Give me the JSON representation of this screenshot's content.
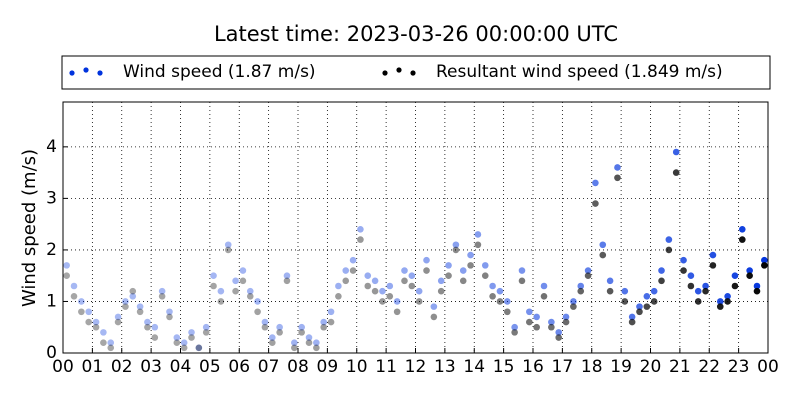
{
  "chart_data": {
    "type": "scatter",
    "title": "Latest time: 2023-03-26 00:00:00 UTC",
    "y_label": "Wind speed (m/s)",
    "x": [
      0.125,
      0.375,
      0.625,
      0.875,
      1.125,
      1.375,
      1.625,
      1.875,
      2.125,
      2.375,
      2.625,
      2.875,
      3.125,
      3.375,
      3.625,
      3.875,
      4.125,
      4.375,
      4.625,
      4.875,
      5.125,
      5.375,
      5.625,
      5.875,
      6.125,
      6.375,
      6.625,
      6.875,
      7.125,
      7.375,
      7.625,
      7.875,
      8.125,
      8.375,
      8.625,
      8.875,
      9.125,
      9.375,
      9.625,
      9.875,
      10.125,
      10.375,
      10.625,
      10.875,
      11.125,
      11.375,
      11.625,
      11.875,
      12.125,
      12.375,
      12.625,
      12.875,
      13.125,
      13.375,
      13.625,
      13.875,
      14.125,
      14.375,
      14.625,
      14.875,
      15.125,
      15.375,
      15.625,
      15.875,
      16.125,
      16.375,
      16.625,
      16.875,
      17.125,
      17.375,
      17.625,
      17.875,
      18.125,
      18.375,
      18.625,
      18.875,
      19.125,
      19.375,
      19.625,
      19.875,
      20.125,
      20.375,
      20.625,
      20.875,
      21.125,
      21.375,
      21.625,
      21.875,
      22.125,
      22.375,
      22.625,
      22.875,
      23.125,
      23.375,
      23.625,
      23.875
    ],
    "series": [
      {
        "name": "Wind speed (1.87 m/s)",
        "color": "#0033dd",
        "values": [
          1.7,
          1.3,
          1.0,
          0.8,
          0.6,
          0.4,
          0.2,
          0.7,
          1.0,
          1.1,
          0.9,
          0.6,
          0.5,
          1.2,
          0.8,
          0.3,
          0.2,
          0.4,
          0.1,
          0.5,
          1.5,
          1.2,
          2.1,
          1.4,
          1.6,
          1.2,
          1.0,
          0.6,
          0.3,
          0.5,
          1.5,
          0.2,
          0.5,
          0.3,
          0.2,
          0.6,
          0.8,
          1.3,
          1.6,
          1.8,
          2.4,
          1.5,
          1.4,
          1.2,
          1.3,
          1.0,
          1.6,
          1.5,
          1.2,
          1.8,
          0.9,
          1.4,
          1.7,
          2.1,
          1.6,
          1.9,
          2.3,
          1.7,
          1.3,
          1.2,
          1.0,
          0.5,
          1.6,
          0.8,
          0.7,
          1.3,
          0.6,
          0.4,
          0.7,
          1.0,
          1.3,
          1.6,
          3.3,
          2.1,
          1.4,
          3.6,
          1.2,
          0.7,
          0.9,
          1.1,
          1.2,
          1.6,
          2.2,
          3.9,
          1.8,
          1.5,
          1.2,
          1.3,
          1.9,
          1.0,
          1.1,
          1.5,
          2.4,
          1.6,
          1.3,
          1.8
        ]
      },
      {
        "name": "Resultant wind speed (1.849 m/s)",
        "color": "#000000",
        "values": [
          1.5,
          1.1,
          0.8,
          0.6,
          0.5,
          0.2,
          0.1,
          0.6,
          0.9,
          1.2,
          0.8,
          0.5,
          0.3,
          1.1,
          0.7,
          0.2,
          0.1,
          0.3,
          0.1,
          0.4,
          1.3,
          1.0,
          2.0,
          1.2,
          1.4,
          1.1,
          0.8,
          0.5,
          0.2,
          0.4,
          1.4,
          0.1,
          0.4,
          0.2,
          0.1,
          0.5,
          0.6,
          1.1,
          1.4,
          1.6,
          2.2,
          1.3,
          1.2,
          1.0,
          1.1,
          0.8,
          1.4,
          1.3,
          1.0,
          1.6,
          0.7,
          1.2,
          1.5,
          2.0,
          1.4,
          1.7,
          2.1,
          1.5,
          1.1,
          1.0,
          0.8,
          0.4,
          1.4,
          0.6,
          0.5,
          1.1,
          0.5,
          0.3,
          0.6,
          0.9,
          1.2,
          1.5,
          2.9,
          1.9,
          1.2,
          3.4,
          1.0,
          0.6,
          0.8,
          0.9,
          1.0,
          1.4,
          2.0,
          3.5,
          1.6,
          1.3,
          1.0,
          1.2,
          1.7,
          0.9,
          1.0,
          1.3,
          2.2,
          1.5,
          1.2,
          1.7
        ]
      }
    ],
    "xlim": [
      0,
      24
    ],
    "xticks": [
      {
        "value": 0,
        "label": "00"
      },
      {
        "value": 1,
        "label": "01"
      },
      {
        "value": 2,
        "label": "02"
      },
      {
        "value": 3,
        "label": "03"
      },
      {
        "value": 4,
        "label": "04"
      },
      {
        "value": 5,
        "label": "05"
      },
      {
        "value": 6,
        "label": "06"
      },
      {
        "value": 7,
        "label": "07"
      },
      {
        "value": 8,
        "label": "08"
      },
      {
        "value": 9,
        "label": "09"
      },
      {
        "value": 10,
        "label": "10"
      },
      {
        "value": 11,
        "label": "11"
      },
      {
        "value": 12,
        "label": "12"
      },
      {
        "value": 13,
        "label": "13"
      },
      {
        "value": 14,
        "label": "14"
      },
      {
        "value": 15,
        "label": "15"
      },
      {
        "value": 16,
        "label": "16"
      },
      {
        "value": 17,
        "label": "17"
      },
      {
        "value": 18,
        "label": "18"
      },
      {
        "value": 19,
        "label": "19"
      },
      {
        "value": 20,
        "label": "20"
      },
      {
        "value": 21,
        "label": "21"
      },
      {
        "value": 22,
        "label": "22"
      },
      {
        "value": 23,
        "label": "23"
      },
      {
        "value": 24,
        "label": "00"
      }
    ],
    "ylim": [
      0,
      4.87
    ],
    "yticks": [
      0,
      1,
      2,
      3,
      4
    ],
    "grid": true,
    "legend": "top"
  }
}
